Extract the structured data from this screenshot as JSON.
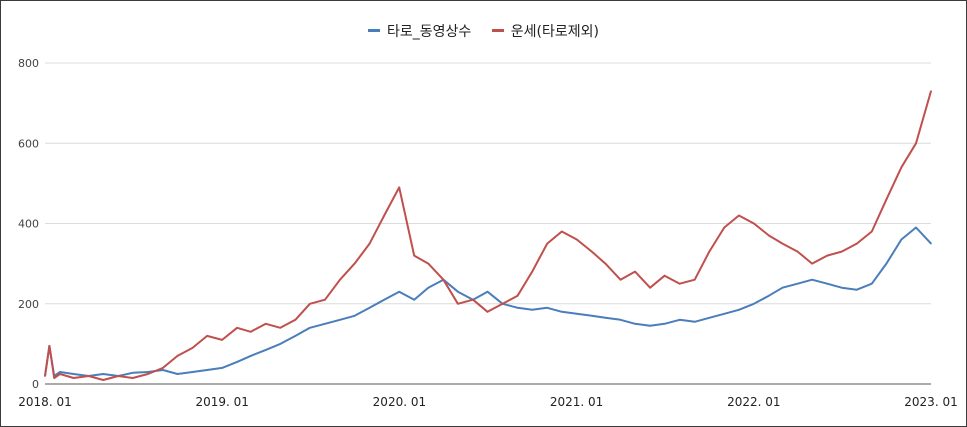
{
  "chart_data": {
    "type": "line",
    "title": "",
    "xlabel": "",
    "ylabel": "",
    "legend_position": "top-center",
    "grid": true,
    "ylim": [
      0,
      800
    ],
    "y_ticks": [
      0,
      200,
      400,
      600,
      800
    ],
    "x_tick_labels": [
      "2018. 01",
      "2019. 01",
      "2020. 01",
      "2021. 01",
      "2022. 01",
      "2023. 01"
    ],
    "x_start": "2018-01",
    "x_end": "2023-01",
    "series": [
      {
        "name": "타로_동영상수",
        "color": "#4a7ebb",
        "points": [
          [
            "2018-01",
            20
          ],
          [
            "2018-01-10",
            95
          ],
          [
            "2018-01-20",
            20
          ],
          [
            "2018-02",
            30
          ],
          [
            "2018-03",
            25
          ],
          [
            "2018-04",
            20
          ],
          [
            "2018-05",
            25
          ],
          [
            "2018-06",
            20
          ],
          [
            "2018-07",
            28
          ],
          [
            "2018-08",
            30
          ],
          [
            "2018-09",
            35
          ],
          [
            "2018-10",
            25
          ],
          [
            "2018-11",
            30
          ],
          [
            "2018-12",
            35
          ],
          [
            "2019-01",
            40
          ],
          [
            "2019-02",
            55
          ],
          [
            "2019-03",
            70
          ],
          [
            "2019-04",
            85
          ],
          [
            "2019-05",
            100
          ],
          [
            "2019-06",
            120
          ],
          [
            "2019-07",
            140
          ],
          [
            "2019-08",
            150
          ],
          [
            "2019-09",
            160
          ],
          [
            "2019-10",
            170
          ],
          [
            "2019-11",
            190
          ],
          [
            "2019-12",
            210
          ],
          [
            "2020-01",
            230
          ],
          [
            "2020-02",
            210
          ],
          [
            "2020-03",
            240
          ],
          [
            "2020-04",
            260
          ],
          [
            "2020-05",
            230
          ],
          [
            "2020-06",
            210
          ],
          [
            "2020-07",
            230
          ],
          [
            "2020-08",
            200
          ],
          [
            "2020-09",
            190
          ],
          [
            "2020-10",
            185
          ],
          [
            "2020-11",
            190
          ],
          [
            "2020-12",
            180
          ],
          [
            "2021-01",
            175
          ],
          [
            "2021-02",
            170
          ],
          [
            "2021-03",
            165
          ],
          [
            "2021-04",
            160
          ],
          [
            "2021-05",
            150
          ],
          [
            "2021-06",
            145
          ],
          [
            "2021-07",
            150
          ],
          [
            "2021-08",
            160
          ],
          [
            "2021-09",
            155
          ],
          [
            "2021-10",
            165
          ],
          [
            "2021-11",
            175
          ],
          [
            "2021-12",
            185
          ],
          [
            "2022-01",
            200
          ],
          [
            "2022-02",
            220
          ],
          [
            "2022-03",
            240
          ],
          [
            "2022-04",
            250
          ],
          [
            "2022-05",
            260
          ],
          [
            "2022-06",
            250
          ],
          [
            "2022-07",
            240
          ],
          [
            "2022-08",
            235
          ],
          [
            "2022-09",
            250
          ],
          [
            "2022-10",
            300
          ],
          [
            "2022-11",
            360
          ],
          [
            "2022-12",
            390
          ],
          [
            "2023-01",
            350
          ]
        ]
      },
      {
        "name": "운세(타로제외)",
        "color": "#c0504d",
        "points": [
          [
            "2018-01",
            20
          ],
          [
            "2018-01-10",
            95
          ],
          [
            "2018-01-20",
            15
          ],
          [
            "2018-02",
            25
          ],
          [
            "2018-03",
            15
          ],
          [
            "2018-04",
            20
          ],
          [
            "2018-05",
            10
          ],
          [
            "2018-06",
            20
          ],
          [
            "2018-07",
            15
          ],
          [
            "2018-08",
            25
          ],
          [
            "2018-09",
            40
          ],
          [
            "2018-10",
            70
          ],
          [
            "2018-11",
            90
          ],
          [
            "2018-12",
            120
          ],
          [
            "2019-01",
            110
          ],
          [
            "2019-02",
            140
          ],
          [
            "2019-03",
            130
          ],
          [
            "2019-04",
            150
          ],
          [
            "2019-05",
            140
          ],
          [
            "2019-06",
            160
          ],
          [
            "2019-07",
            200
          ],
          [
            "2019-08",
            210
          ],
          [
            "2019-09",
            260
          ],
          [
            "2019-10",
            300
          ],
          [
            "2019-11",
            350
          ],
          [
            "2019-12",
            420
          ],
          [
            "2020-01",
            490
          ],
          [
            "2020-02",
            320
          ],
          [
            "2020-03",
            300
          ],
          [
            "2020-04",
            260
          ],
          [
            "2020-05",
            200
          ],
          [
            "2020-06",
            210
          ],
          [
            "2020-07",
            180
          ],
          [
            "2020-08",
            200
          ],
          [
            "2020-09",
            220
          ],
          [
            "2020-10",
            280
          ],
          [
            "2020-11",
            350
          ],
          [
            "2020-12",
            380
          ],
          [
            "2021-01",
            360
          ],
          [
            "2021-02",
            330
          ],
          [
            "2021-03",
            300
          ],
          [
            "2021-04",
            260
          ],
          [
            "2021-05",
            280
          ],
          [
            "2021-06",
            240
          ],
          [
            "2021-07",
            270
          ],
          [
            "2021-08",
            250
          ],
          [
            "2021-09",
            260
          ],
          [
            "2021-10",
            330
          ],
          [
            "2021-11",
            390
          ],
          [
            "2021-12",
            420
          ],
          [
            "2022-01",
            400
          ],
          [
            "2022-02",
            370
          ],
          [
            "2022-03",
            350
          ],
          [
            "2022-04",
            330
          ],
          [
            "2022-05",
            300
          ],
          [
            "2022-06",
            320
          ],
          [
            "2022-07",
            330
          ],
          [
            "2022-08",
            350
          ],
          [
            "2022-09",
            380
          ],
          [
            "2022-10",
            460
          ],
          [
            "2022-11",
            540
          ],
          [
            "2022-12",
            600
          ],
          [
            "2023-01",
            730
          ]
        ]
      }
    ]
  }
}
